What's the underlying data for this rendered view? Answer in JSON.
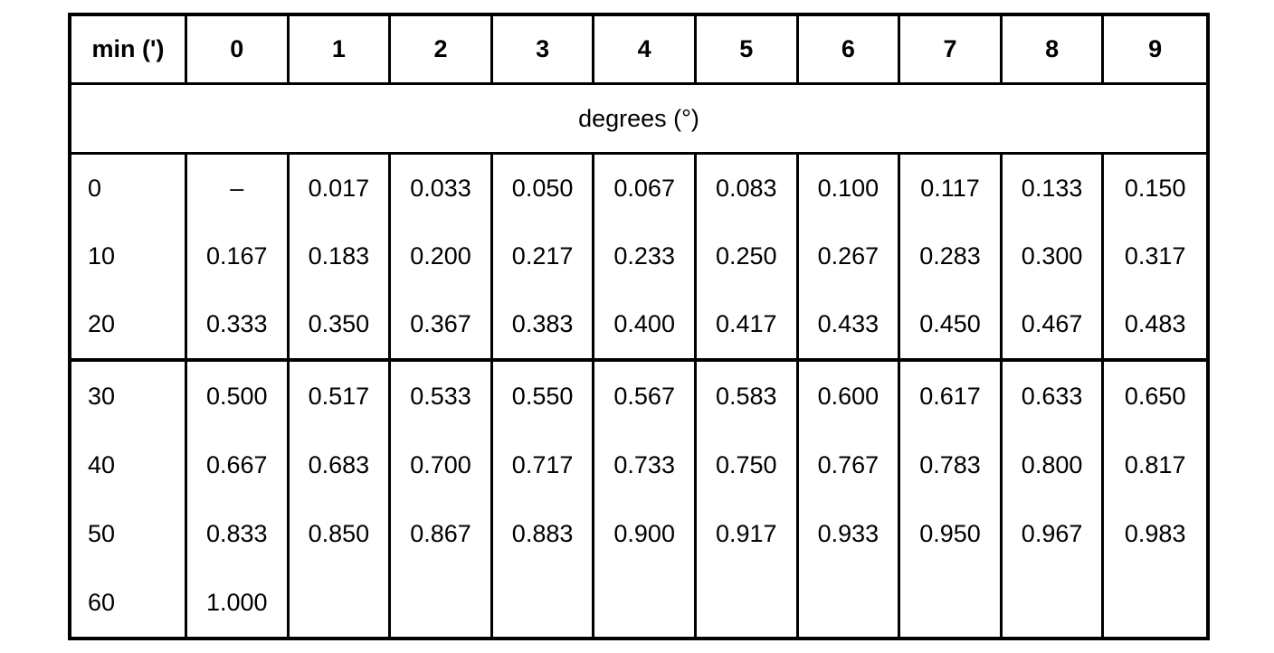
{
  "page": {
    "background_color": "#ffffff",
    "line_color": "#000000"
  },
  "table": {
    "corner_header": "min (')",
    "column_headers": [
      "0",
      "1",
      "2",
      "3",
      "4",
      "5",
      "6",
      "7",
      "8",
      "9"
    ],
    "span_header": "degrees (°)",
    "groups": [
      {
        "rows": [
          {
            "label": "0",
            "values": [
              "–",
              "0.017",
              "0.033",
              "0.050",
              "0.067",
              "0.083",
              "0.100",
              "0.117",
              "0.133",
              "0.150"
            ]
          },
          {
            "label": "10",
            "values": [
              "0.167",
              "0.183",
              "0.200",
              "0.217",
              "0.233",
              "0.250",
              "0.267",
              "0.283",
              "0.300",
              "0.317"
            ]
          },
          {
            "label": "20",
            "values": [
              "0.333",
              "0.350",
              "0.367",
              "0.383",
              "0.400",
              "0.417",
              "0.433",
              "0.450",
              "0.467",
              "0.483"
            ]
          }
        ]
      },
      {
        "rows": [
          {
            "label": "30",
            "values": [
              "0.500",
              "0.517",
              "0.533",
              "0.550",
              "0.567",
              "0.583",
              "0.600",
              "0.617",
              "0.633",
              "0.650"
            ]
          },
          {
            "label": "40",
            "values": [
              "0.667",
              "0.683",
              "0.700",
              "0.717",
              "0.733",
              "0.750",
              "0.767",
              "0.783",
              "0.800",
              "0.817"
            ]
          },
          {
            "label": "50",
            "values": [
              "0.833",
              "0.850",
              "0.867",
              "0.883",
              "0.900",
              "0.917",
              "0.933",
              "0.950",
              "0.967",
              "0.983"
            ]
          },
          {
            "label": "60",
            "values": [
              "1.000",
              "",
              "",
              "",
              "",
              "",
              "",
              "",
              "",
              ""
            ]
          }
        ]
      }
    ]
  }
}
